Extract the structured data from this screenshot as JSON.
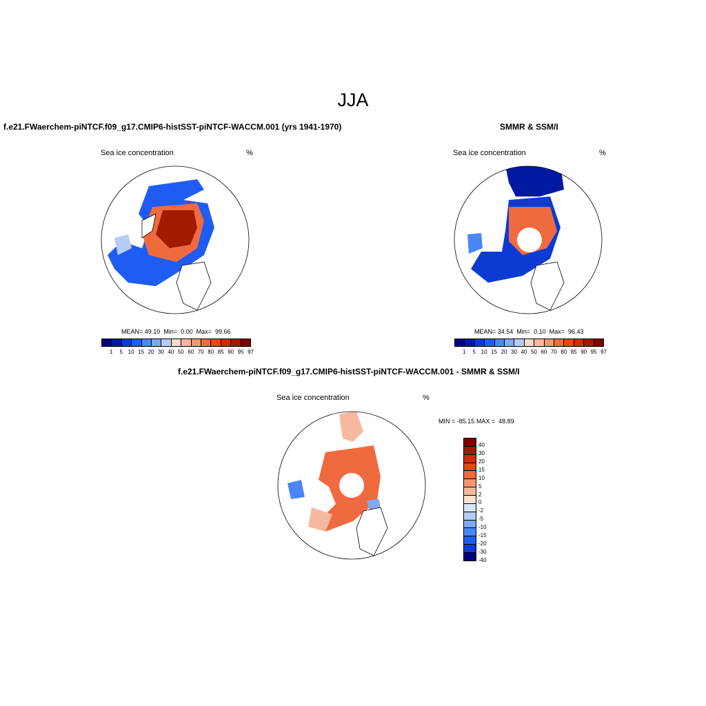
{
  "title": "JJA",
  "colors": {
    "scale": [
      "#00007f",
      "#0019a3",
      "#0c3bd4",
      "#1f5cf2",
      "#4a86f7",
      "#7fa9f5",
      "#b4cdf5",
      "#f4dcc8",
      "#f6b9a0",
      "#f49674",
      "#f06a3f",
      "#e8451a",
      "#cf2c08",
      "#a31a02",
      "#7f0000"
    ],
    "diff_scale": [
      "#7f0000",
      "#a31a02",
      "#cf2c08",
      "#e8451a",
      "#f06a3f",
      "#f49674",
      "#f6b9a0",
      "#fbe3d2",
      "#d6e4f7",
      "#b4cdf5",
      "#7fa9f5",
      "#4a86f7",
      "#1f5cf2",
      "#0c3bd4",
      "#00007f"
    ]
  },
  "chart_data": [
    {
      "type": "heatmap",
      "title": "f.e21.FWaerchem-piNTCF.f09_g17.CMIP6-histSST-piNTCF-WACCM.001 (yrs 1941-1970)",
      "variable": "Sea ice concentration",
      "units": "%",
      "stats": {
        "mean": "49.10",
        "min": "0.00",
        "max": "99.66"
      },
      "stats_label": {
        "mean": "MEAN=",
        "min": "Min=",
        "max": "Max="
      },
      "levels": [
        "1",
        "5",
        "10",
        "15",
        "20",
        "30",
        "40",
        "50",
        "60",
        "70",
        "80",
        "85",
        "90",
        "95",
        "97"
      ]
    },
    {
      "type": "heatmap",
      "title": "SMMR & SSM/I",
      "variable": "Sea ice concentration",
      "units": "%",
      "stats": {
        "mean": "34.54",
        "min": "0.10",
        "max": "96.43"
      },
      "stats_label": {
        "mean": "MEAN=",
        "min": "Min=",
        "max": "Max="
      },
      "levels": [
        "1",
        "5",
        "10",
        "15",
        "20",
        "30",
        "40",
        "50",
        "60",
        "70",
        "80",
        "85",
        "90",
        "95",
        "97"
      ]
    },
    {
      "type": "heatmap",
      "title": "f.e21.FWaerchem-piNTCF.f09_g17.CMIP6-histSST-piNTCF-WACCM.001 - SMMR & SSM/I",
      "variable": "Sea ice concentration",
      "units": "%",
      "range_label": {
        "min": "MIN =",
        "min_value": "-85.15",
        "max": "MAX =",
        "max_value": "48.89"
      },
      "levels": [
        "40",
        "30",
        "20",
        "15",
        "10",
        "5",
        "2",
        "0",
        "-2",
        "-5",
        "-10",
        "-15",
        "-20",
        "-30",
        "-40"
      ]
    }
  ]
}
